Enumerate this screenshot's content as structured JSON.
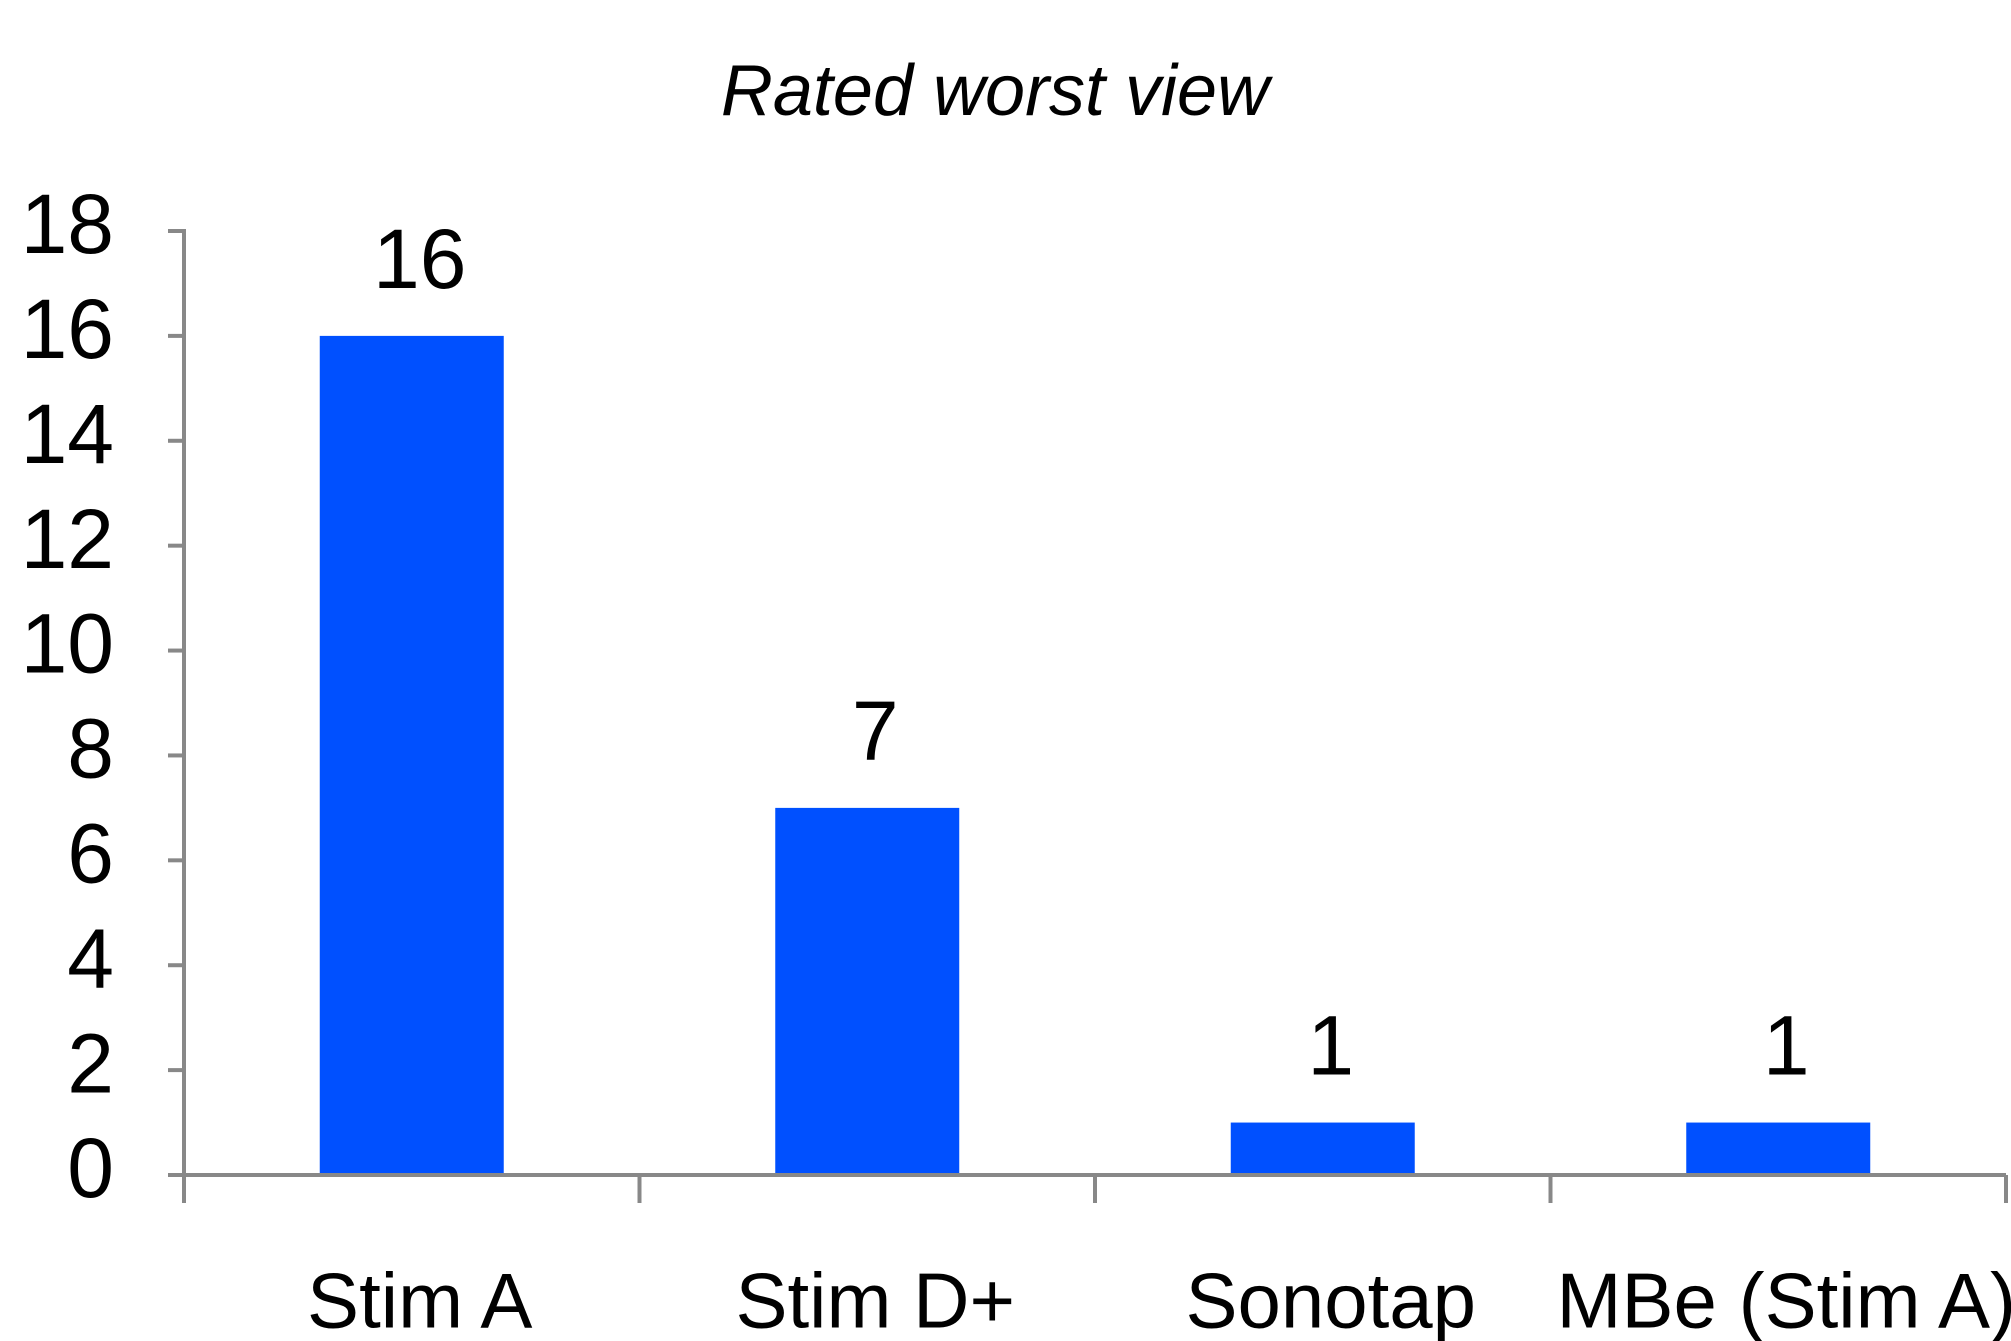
{
  "chart_data": {
    "type": "bar",
    "title": "Rated worst view",
    "categories": [
      "Stim A",
      "Stim D+",
      "Sonotap",
      "MBe (Stim A)"
    ],
    "values": [
      16,
      7,
      1,
      1
    ],
    "color": "#0050ff",
    "ylim": [
      0,
      18
    ],
    "yticks": [
      0,
      2,
      4,
      6,
      8,
      10,
      12,
      14,
      16,
      18
    ]
  }
}
